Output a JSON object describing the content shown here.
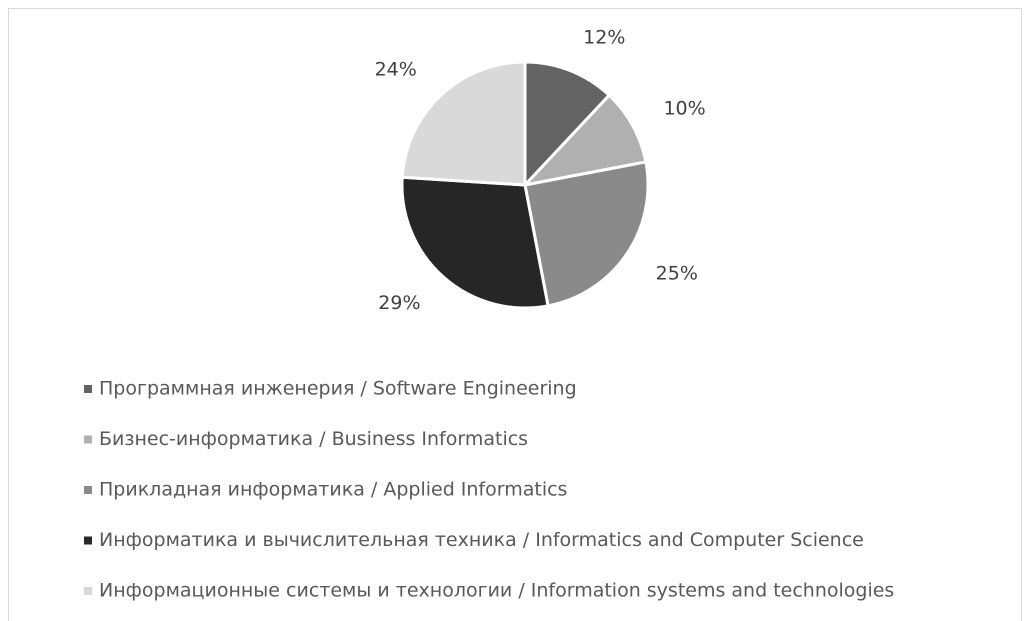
{
  "chart_data": {
    "type": "pie",
    "categories": [
      "Программная инженерия / Software Engineering",
      "Бизнес-информатика / Business Informatics",
      "Прикладная информатика / Applied Informatics",
      "Информатика и вычислительная техника / Informatics and Computer Science",
      "Информационные системы и технологии / Information systems and technologies"
    ],
    "values": [
      12,
      10,
      25,
      29,
      24
    ],
    "value_labels": [
      "12%",
      "10%",
      "25%",
      "29%",
      "24%"
    ],
    "colors": [
      "#636363",
      "#b0b0b0",
      "#8a8a8a",
      "#262626",
      "#d9d9d9"
    ],
    "legend": "bottom"
  }
}
